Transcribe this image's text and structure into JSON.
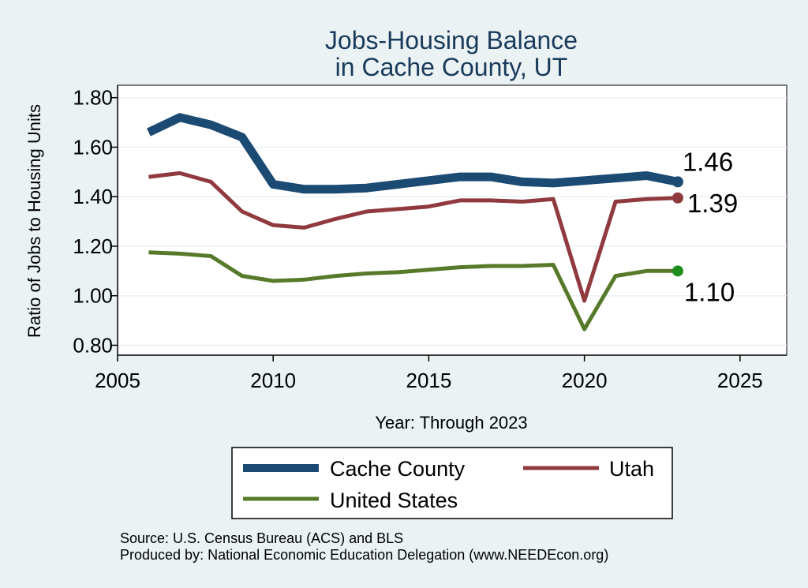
{
  "chart_data": {
    "type": "line",
    "title": [
      "Jobs-Housing Balance",
      "in Cache County, UT"
    ],
    "xlabel": "Year: Through 2023",
    "ylabel": "Ratio of Jobs to Housing Units",
    "xlim": [
      2005,
      2026.5
    ],
    "ylim": [
      0.76,
      1.85
    ],
    "xticks": [
      2005,
      2010,
      2015,
      2020,
      2025
    ],
    "yticks": [
      0.8,
      1.0,
      1.2,
      1.4,
      1.6,
      1.8
    ],
    "ytick_labels": [
      "0.80",
      "1.00",
      "1.20",
      "1.40",
      "1.60",
      "1.80"
    ],
    "grid": true,
    "x": [
      2006,
      2007,
      2008,
      2009,
      2010,
      2011,
      2012,
      2013,
      2014,
      2015,
      2016,
      2017,
      2018,
      2019,
      2020,
      2021,
      2022,
      2023
    ],
    "series": [
      {
        "name": "Cache County",
        "color": "#1b4a73",
        "values": [
          1.66,
          1.72,
          1.69,
          1.64,
          1.45,
          1.43,
          1.43,
          1.435,
          1.45,
          1.465,
          1.48,
          1.48,
          1.46,
          1.455,
          1.465,
          1.475,
          1.485,
          1.46
        ],
        "end_label": "1.46"
      },
      {
        "name": "Utah",
        "color": "#903a3f",
        "values": [
          1.48,
          1.495,
          1.46,
          1.34,
          1.285,
          1.275,
          1.31,
          1.34,
          1.35,
          1.36,
          1.385,
          1.385,
          1.38,
          1.39,
          0.98,
          1.38,
          1.39,
          1.395
        ],
        "end_label": "1.39"
      },
      {
        "name": "United States",
        "color": "#577a2a",
        "values": [
          1.175,
          1.17,
          1.16,
          1.08,
          1.06,
          1.065,
          1.08,
          1.09,
          1.095,
          1.105,
          1.115,
          1.12,
          1.12,
          1.125,
          0.865,
          1.08,
          1.1,
          1.1
        ],
        "end_label": "1.10",
        "marker_color": "#1e8f1e"
      }
    ],
    "legend": {
      "position": "bottom",
      "entries": [
        "Cache County",
        "Utah",
        "United States"
      ]
    }
  },
  "source_lines": [
    "Source: U.S. Census Bureau (ACS) and BLS",
    "Produced by: National Economic Education Delegation (www.NEEDEcon.org)"
  ]
}
